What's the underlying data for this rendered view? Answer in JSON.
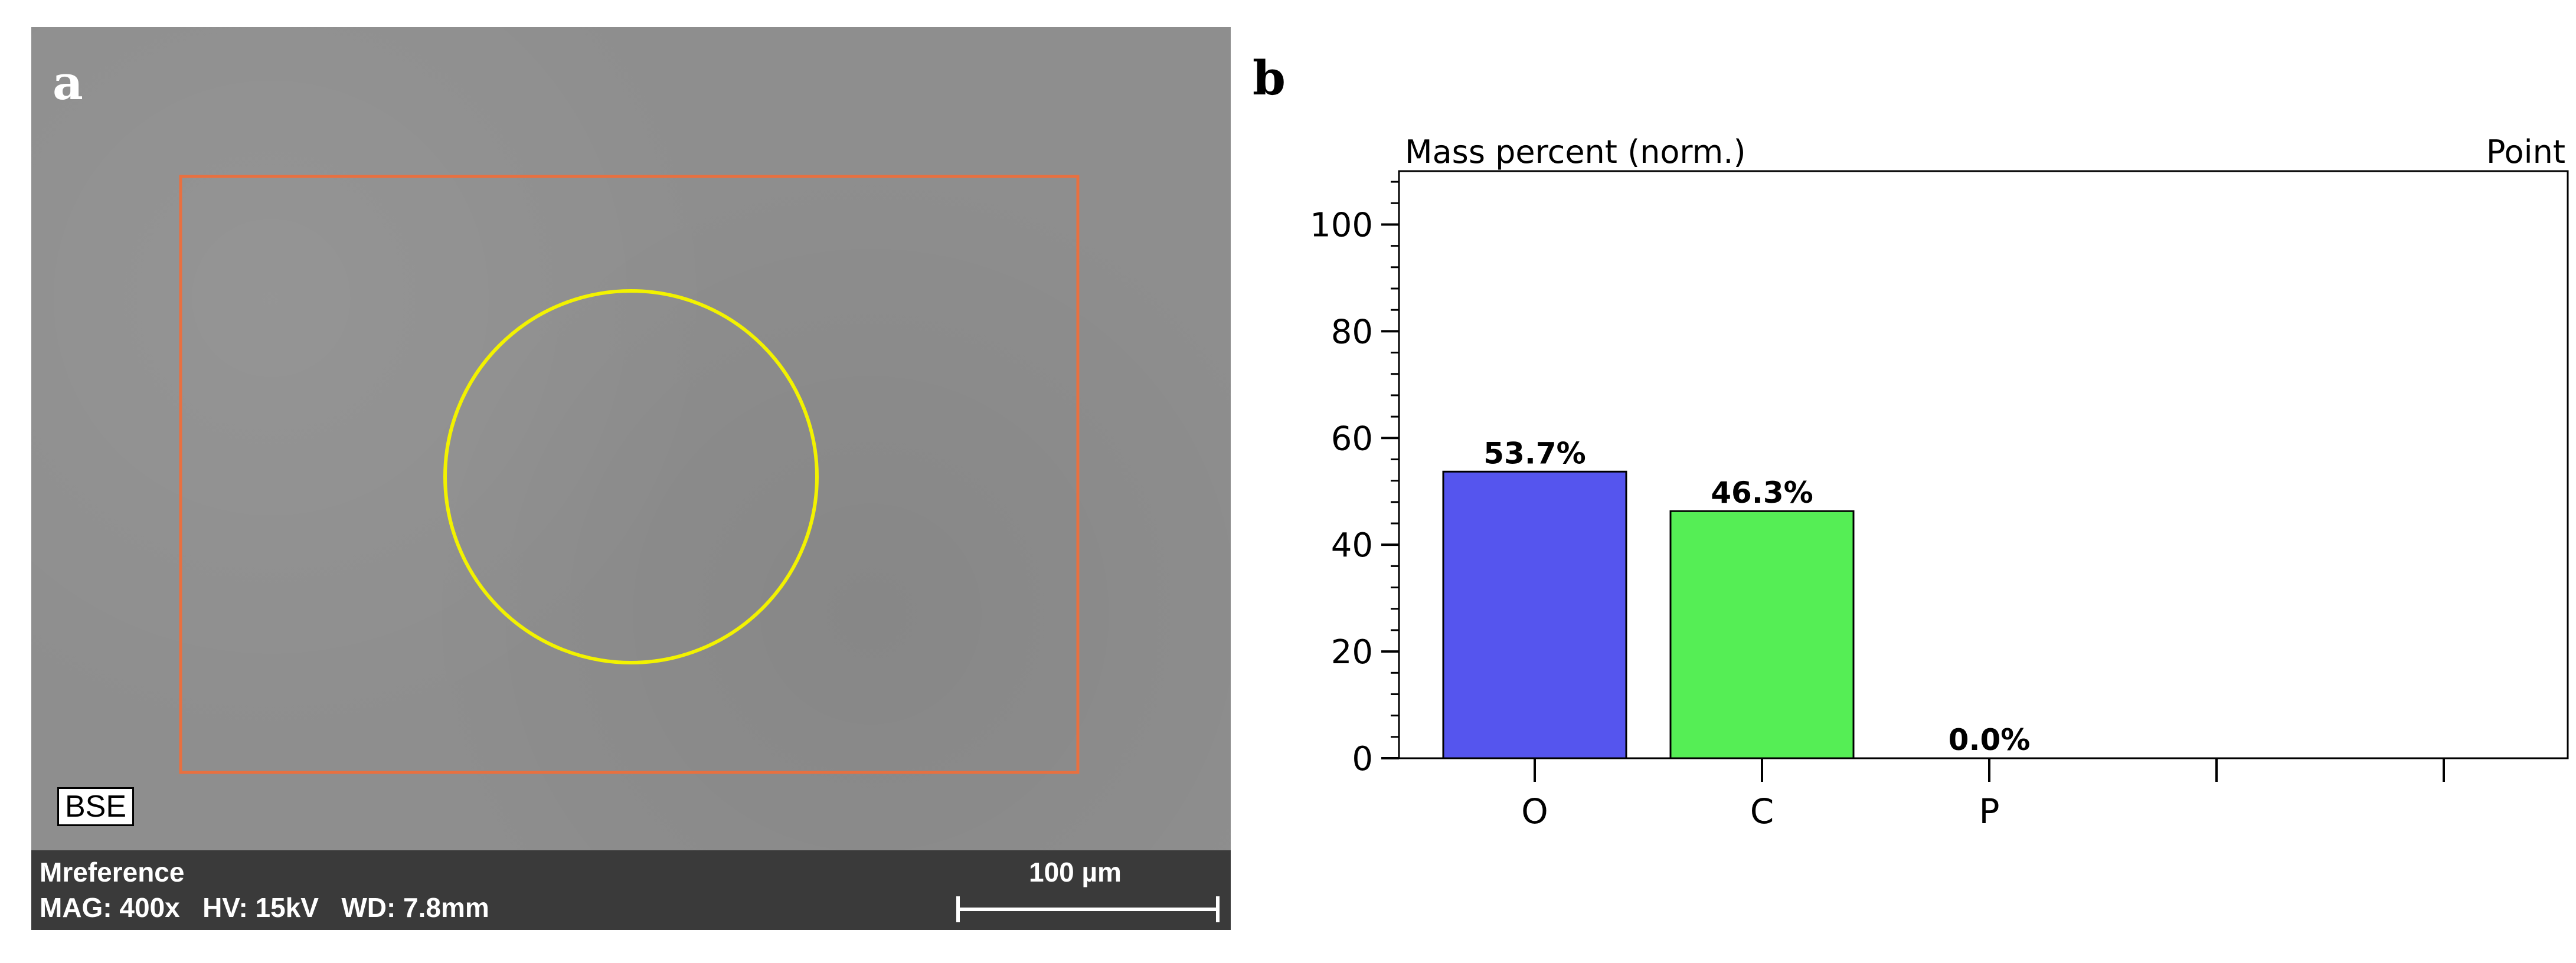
{
  "panels": {
    "a_label": "a",
    "b_label": "b"
  },
  "sem": {
    "detector_badge": "BSE",
    "sample_name": "Mreference",
    "params": "MAG: 400x   HV: 15kV   WD: 7.8mm",
    "scale_text": "100 µm",
    "colors": {
      "roi_rect": "#e87040",
      "roi_circle": "#f2f200"
    }
  },
  "chart_data": {
    "type": "bar",
    "title": "Mass percent (norm.)",
    "corner_label": "Point",
    "categories": [
      "O",
      "C",
      "P",
      "",
      ""
    ],
    "values": [
      53.7,
      46.3,
      0.0,
      null,
      null
    ],
    "data_labels": [
      "53.7%",
      "46.3%",
      "0.0%",
      "",
      ""
    ],
    "colors": [
      "#5555ee",
      "#55ee55",
      "#c0c0c0",
      "",
      ""
    ],
    "ylim": [
      0,
      110
    ],
    "yticks": [
      0,
      20,
      40,
      60,
      80,
      100
    ],
    "xlabel": "",
    "ylabel": ""
  }
}
